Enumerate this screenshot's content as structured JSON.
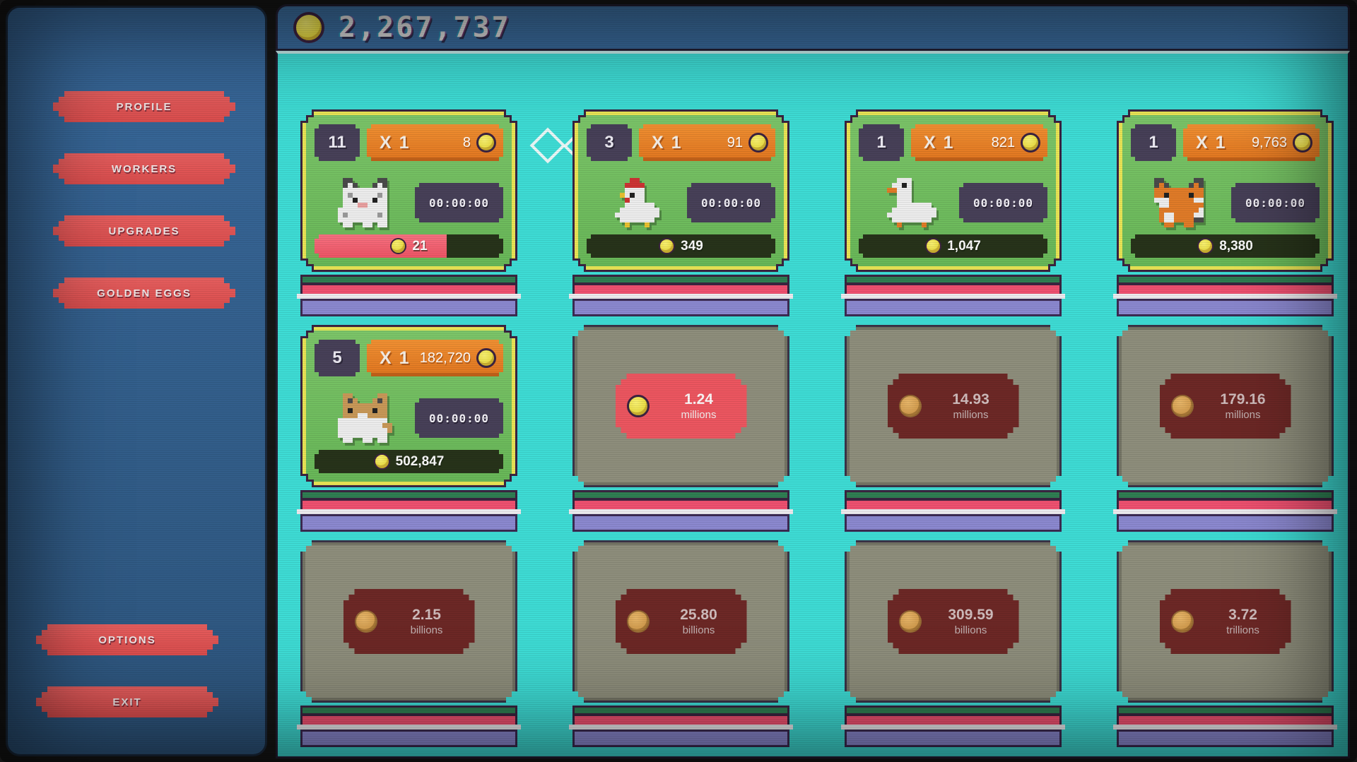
{
  "top_bar": {
    "coin_icon": "coin",
    "balance": "2,267,737"
  },
  "sidebar": {
    "buttons": [
      {
        "id": "profile",
        "label": "PROFILE"
      },
      {
        "id": "workers",
        "label": "WORKERS"
      },
      {
        "id": "upgrades",
        "label": "UPGRADES"
      },
      {
        "id": "golden-eggs",
        "label": "GOLDEN EGGS"
      }
    ],
    "footer_buttons": [
      {
        "id": "options",
        "label": "OPTIONS"
      },
      {
        "id": "exit",
        "label": "EXIT"
      }
    ]
  },
  "workers_grid": {
    "columns": 4,
    "cards": [
      {
        "state": "unlocked",
        "animal": "cat",
        "count": "11",
        "multiplier": "X 1",
        "income_per_cycle": "8",
        "timer": "00:00:00",
        "stored_value": "21",
        "progress_percent": 70
      },
      {
        "state": "unlocked",
        "animal": "chicken",
        "count": "3",
        "multiplier": "X 1",
        "income_per_cycle": "91",
        "timer": "00:00:00",
        "stored_value": "349",
        "progress_percent": 0
      },
      {
        "state": "unlocked",
        "animal": "goose",
        "count": "1",
        "multiplier": "X 1",
        "income_per_cycle": "821",
        "timer": "00:00:00",
        "stored_value": "1,047",
        "progress_percent": 0
      },
      {
        "state": "unlocked",
        "animal": "fox",
        "count": "1",
        "multiplier": "X 1",
        "income_per_cycle": "9,763",
        "timer": "00:00:00",
        "stored_value": "8,380",
        "progress_percent": 0
      },
      {
        "state": "unlocked",
        "animal": "dog",
        "count": "5",
        "multiplier": "X 1",
        "income_per_cycle": "182,720",
        "timer": "00:00:00",
        "stored_value": "502,847",
        "progress_percent": 0
      },
      {
        "state": "locked",
        "price_value": "1.24",
        "price_unit": "millions",
        "affordable": true
      },
      {
        "state": "locked",
        "price_value": "14.93",
        "price_unit": "millions",
        "affordable": false
      },
      {
        "state": "locked",
        "price_value": "179.16",
        "price_unit": "millions",
        "affordable": false
      },
      {
        "state": "locked",
        "price_value": "2.15",
        "price_unit": "billions",
        "affordable": false
      },
      {
        "state": "locked",
        "price_value": "25.80",
        "price_unit": "billions",
        "affordable": false
      },
      {
        "state": "locked",
        "price_value": "309.59",
        "price_unit": "billions",
        "affordable": false
      },
      {
        "state": "locked",
        "price_value": "3.72",
        "price_unit": "trillions",
        "affordable": false
      }
    ]
  },
  "colors": {
    "main_teal": "#3edcd5",
    "panel_blue": "#38689a",
    "button_red": "#da4d4d",
    "card_green": "#68b758",
    "card_border_yellow": "#e9e455",
    "pill_orange": "#e0751f",
    "badge_dark": "#474058",
    "locked_gray": "#8e8e7c",
    "price_tag_red": "#ec5660",
    "price_tag_dark_red": "#6d2826",
    "coin_yellow": "#e7d93a",
    "coin_tan": "#cf984a",
    "progress_fill": "#ee5465",
    "progress_bg": "#27331a"
  }
}
